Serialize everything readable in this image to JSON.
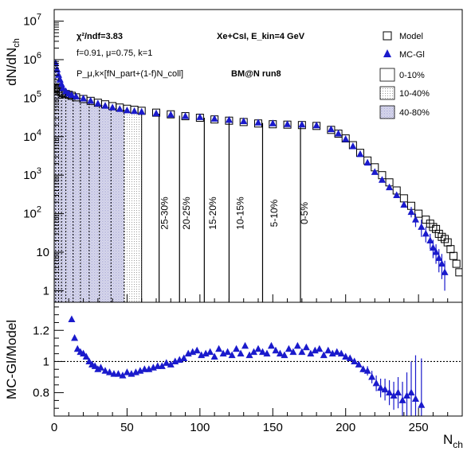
{
  "chart_data": [
    {
      "type": "scatter",
      "ylabel": "dN/dN",
      "ylabel_sub": "ch",
      "yscale": "log",
      "xlim": [
        0,
        280
      ],
      "ylim": [
        0.5,
        20000000
      ],
      "y_ticks": [
        {
          "v": 10000000,
          "base": "10",
          "exp": "7"
        },
        {
          "v": 1000000,
          "base": "10",
          "exp": "6"
        },
        {
          "v": 100000,
          "base": "10",
          "exp": "5"
        },
        {
          "v": 10000,
          "base": "10",
          "exp": "4"
        },
        {
          "v": 1000,
          "base": "10",
          "exp": "3"
        },
        {
          "v": 100,
          "base": "10",
          "exp": "2"
        },
        {
          "v": 10,
          "base": "10",
          "exp": ""
        },
        {
          "v": 1,
          "base": "1",
          "exp": ""
        }
      ],
      "annotations": {
        "chi": "χ²/ndf=3.83",
        "params": "f=0.91, μ=0.75, k=1",
        "formula": "P_μ,k×[fN_part+(1-f)N_coll]",
        "system": "Xe+CsI, E_kin=4 GeV",
        "run": "BM@N run8"
      },
      "legend": {
        "placement": "top-right",
        "entries": [
          {
            "label": "Model",
            "symbol": "open-square"
          },
          {
            "label": "MC-Gl",
            "symbol": "filled-triangle"
          },
          {
            "label": "0-10%",
            "symbol": "empty-box"
          },
          {
            "label": "10-40%",
            "symbol": "light-dots"
          },
          {
            "label": "40-80%",
            "symbol": "dense-hatch"
          }
        ]
      },
      "centrality_boundaries": [
        169,
        143,
        120,
        103,
        86,
        72,
        60,
        48,
        39,
        31,
        24,
        18,
        13,
        8,
        5,
        3,
        1
      ],
      "centrality_labels": [
        {
          "label": "0-5%",
          "x": 174
        },
        {
          "label": "5-10%",
          "x": 153
        },
        {
          "label": "10-15%",
          "x": 130
        },
        {
          "label": "15-20%",
          "x": 111
        },
        {
          "label": "20-25%",
          "x": 93
        },
        {
          "label": "25-30%",
          "x": 78
        }
      ],
      "series": [
        {
          "name": "Model",
          "marker": "open-square",
          "color": "#000000",
          "x": [
            0,
            1,
            2,
            3,
            4,
            5,
            6,
            8,
            10,
            12,
            15,
            20,
            25,
            30,
            35,
            40,
            45,
            50,
            55,
            60,
            70,
            80,
            90,
            100,
            110,
            120,
            130,
            140,
            150,
            160,
            170,
            180,
            190,
            195,
            200,
            205,
            210,
            215,
            220,
            225,
            230,
            235,
            240,
            245,
            250,
            255,
            258,
            260,
            262,
            264,
            266,
            268,
            270,
            272,
            274,
            276,
            278
          ],
          "y": [
            150000,
            180000,
            190000,
            170000,
            150000,
            140000,
            135000,
            128000,
            122000,
            115000,
            105000,
            95000,
            85000,
            76000,
            69000,
            62000,
            57000,
            53000,
            50000,
            47000,
            42000,
            38000,
            34000,
            31000,
            28000,
            26000,
            24000,
            22000,
            21000,
            20500,
            20000,
            19000,
            15000,
            12000,
            9000,
            6000,
            3800,
            2400,
            1600,
            1000,
            650,
            400,
            250,
            160,
            100,
            70,
            55,
            45,
            40,
            30,
            25,
            22,
            18,
            12,
            8,
            5,
            3
          ]
        },
        {
          "name": "MC-Gl",
          "marker": "filled-triangle",
          "color": "#1a1acc",
          "x": [
            1,
            2,
            3,
            4,
            5,
            6,
            8,
            10,
            12,
            15,
            20,
            25,
            30,
            35,
            40,
            45,
            50,
            55,
            60,
            70,
            80,
            90,
            100,
            110,
            120,
            130,
            140,
            150,
            160,
            170,
            180,
            190,
            195,
            200,
            205,
            210,
            215,
            220,
            225,
            230,
            235,
            240,
            245,
            248,
            252,
            255,
            258,
            260,
            262,
            264,
            266,
            268
          ],
          "y": [
            800000,
            550000,
            400000,
            300000,
            230000,
            180000,
            150000,
            130000,
            120000,
            110000,
            98000,
            85000,
            72000,
            63000,
            57000,
            52000,
            48000,
            46000,
            44000,
            40000,
            37000,
            34000,
            32000,
            29000,
            27000,
            25000,
            23000,
            22000,
            21000,
            20500,
            19500,
            15500,
            12000,
            8600,
            5600,
            3500,
            2100,
            1200,
            750,
            480,
            300,
            170,
            110,
            70,
            45,
            30,
            20,
            13,
            10,
            7,
            5,
            3
          ],
          "yerr_high": [
            0,
            0,
            0,
            0,
            0,
            0,
            0,
            0,
            0,
            0,
            0,
            0,
            0,
            0,
            0,
            0,
            0,
            0,
            0,
            0,
            0,
            0,
            0,
            0,
            0,
            0,
            0,
            0,
            0,
            0,
            0,
            0,
            0,
            0,
            0,
            0,
            0,
            0,
            0,
            0,
            0,
            0,
            40,
            30,
            25,
            15,
            10,
            8,
            6,
            5,
            4,
            3
          ],
          "yerr_low": [
            0,
            0,
            0,
            0,
            0,
            0,
            0,
            0,
            0,
            0,
            0,
            0,
            0,
            0,
            0,
            0,
            0,
            0,
            0,
            0,
            0,
            0,
            0,
            0,
            0,
            0,
            0,
            0,
            0,
            0,
            0,
            0,
            0,
            0,
            0,
            0,
            0,
            0,
            0,
            0,
            0,
            0,
            30,
            25,
            20,
            12,
            8,
            6,
            5,
            4,
            3,
            2
          ]
        }
      ]
    },
    {
      "type": "scatter",
      "xlabel": "N",
      "xlabel_sub": "ch",
      "ylabel": "MC-Gl/Model",
      "xlim": [
        0,
        280
      ],
      "ylim": [
        0.65,
        1.38
      ],
      "x_ticks": [
        0,
        50,
        100,
        150,
        200,
        250
      ],
      "y_ticks": [
        0.8,
        1,
        1.2
      ],
      "reference_line": 1,
      "series": [
        {
          "name": "MC-Gl/Model",
          "color": "#1a1acc",
          "x": [
            12,
            14,
            16,
            18,
            20,
            22,
            24,
            26,
            28,
            30,
            32,
            35,
            38,
            41,
            44,
            47,
            50,
            53,
            56,
            59,
            62,
            65,
            68,
            71,
            74,
            77,
            80,
            83,
            86,
            89,
            92,
            95,
            98,
            101,
            104,
            107,
            110,
            113,
            116,
            119,
            122,
            125,
            128,
            131,
            134,
            137,
            140,
            143,
            146,
            149,
            152,
            155,
            158,
            161,
            164,
            167,
            170,
            173,
            176,
            179,
            182,
            185,
            188,
            191,
            194,
            197,
            200,
            203,
            206,
            209,
            212,
            215,
            218,
            221,
            224,
            227,
            230,
            233,
            236,
            239,
            242,
            245,
            248,
            252
          ],
          "y": [
            1.27,
            1.15,
            1.08,
            1.06,
            1.05,
            1.03,
            1.0,
            0.98,
            0.97,
            0.95,
            0.96,
            0.94,
            0.93,
            0.92,
            0.92,
            0.91,
            0.93,
            0.92,
            0.93,
            0.94,
            0.95,
            0.95,
            0.96,
            0.97,
            0.97,
            0.99,
            0.98,
            1.0,
            1.01,
            1.02,
            1.05,
            1.06,
            1.07,
            1.04,
            1.05,
            1.06,
            1.03,
            1.08,
            1.05,
            1.06,
            1.04,
            1.08,
            1.05,
            1.1,
            1.04,
            1.06,
            1.08,
            1.06,
            1.05,
            1.1,
            1.07,
            1.05,
            1.04,
            1.08,
            1.06,
            1.1,
            1.06,
            1.09,
            1.05,
            1.07,
            1.08,
            1.04,
            1.07,
            1.05,
            1.06,
            1.05,
            1.03,
            1.02,
            1.0,
            0.98,
            0.95,
            0.94,
            0.9,
            0.86,
            0.83,
            0.82,
            0.8,
            0.78,
            0.8,
            0.75,
            0.78,
            0.8,
            0.76,
            0.72
          ],
          "yerr": [
            0,
            0,
            0,
            0,
            0,
            0,
            0,
            0,
            0,
            0,
            0,
            0,
            0,
            0,
            0,
            0,
            0,
            0,
            0,
            0,
            0,
            0,
            0,
            0,
            0,
            0,
            0,
            0,
            0,
            0,
            0,
            0,
            0,
            0,
            0,
            0,
            0,
            0,
            0,
            0,
            0,
            0,
            0,
            0,
            0,
            0,
            0,
            0,
            0,
            0,
            0,
            0,
            0,
            0,
            0,
            0,
            0,
            0,
            0,
            0,
            0,
            0,
            0,
            0,
            0,
            0,
            0,
            0,
            0,
            0,
            0.02,
            0.03,
            0.04,
            0.05,
            0.06,
            0.07,
            0.08,
            0.09,
            0.1,
            0.12,
            0.15,
            0.2,
            0.28,
            0.3
          ]
        }
      ]
    }
  ]
}
